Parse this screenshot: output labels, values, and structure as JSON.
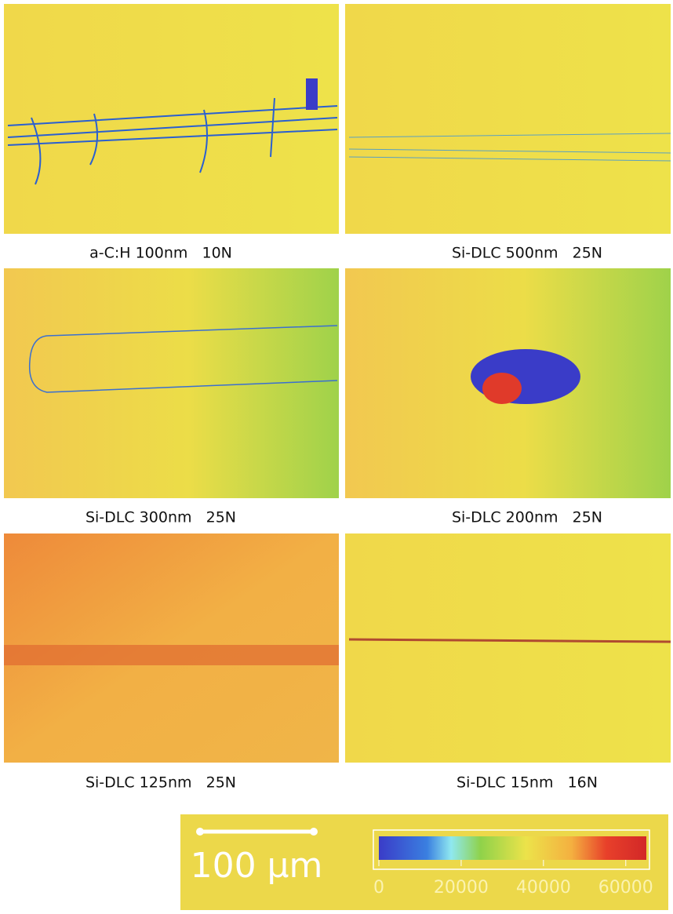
{
  "panels": [
    {
      "label": "a-C:H 100nm   10N"
    },
    {
      "label": "Si-DLC 500nm   25N"
    },
    {
      "label": "Si-DLC 300nm   25N"
    },
    {
      "label": "Si-DLC 200nm   25N"
    },
    {
      "label": "Si-DLC 125nm   25N"
    },
    {
      "label": "Si-DLC 15nm   16N"
    }
  ],
  "scale_bar": {
    "label": "100 µm"
  },
  "colorbar": {
    "lim": [
      0,
      65000
    ],
    "ticks": [
      0,
      20000,
      40000,
      60000
    ]
  }
}
